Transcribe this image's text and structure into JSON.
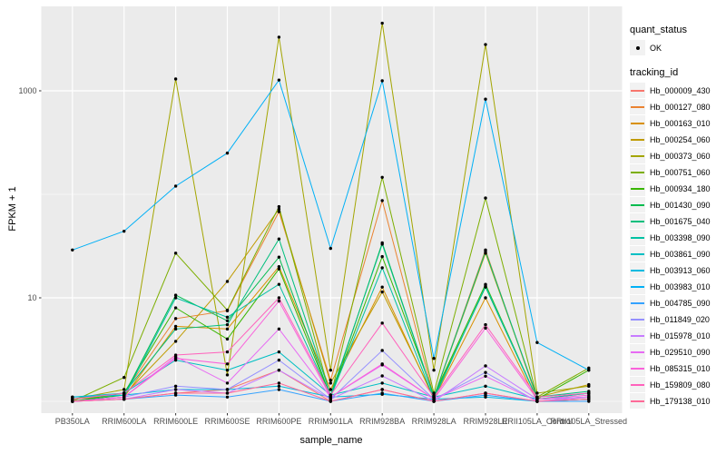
{
  "figure": {
    "bg": "#FFFFFF",
    "panel_bg": "#EBEBEB",
    "grid_color": "#FFFFFF",
    "tick_label_color": "#4D4D4D",
    "point_color": "#000000"
  },
  "chart_data": {
    "type": "line",
    "title": "",
    "xlabel": "sample_name",
    "ylabel": "FPKM + 1",
    "y_scale": "log10",
    "y_tick_labels": [
      "10",
      "1000"
    ],
    "y_tick_values": [
      10,
      1000
    ],
    "y_minor_values": [
      1,
      100
    ],
    "ylim": [
      0.77,
      6200
    ],
    "grid": true,
    "legend_position": "right",
    "categories": [
      "PB350LA",
      "RRIM600LA",
      "RRIM600LE",
      "RRIM600SE",
      "RRIM600PE",
      "RRIM901LA",
      "RRIM928BA",
      "RRIM928LA",
      "RRIM928LE",
      "RRII105LA_Control",
      "RRII105LA_Stressed"
    ],
    "legend": {
      "quant_status_title": "quant_status",
      "quant_status_items": [
        {
          "label": "OK",
          "symbol": "black-point"
        }
      ],
      "tracking_id_title": "tracking_id"
    },
    "series": [
      {
        "name": "Hb_000009_430",
        "color": "#F8766D",
        "values": [
          1.0,
          1.05,
          1.2,
          1.3,
          2.0,
          1.0,
          1.3,
          1.0,
          1.2,
          1.0,
          1.05
        ]
      },
      {
        "name": "Hb_000127_080",
        "color": "#EA8331",
        "values": [
          1.05,
          1.2,
          6.3,
          7.5,
          68,
          1.6,
          87,
          1.1,
          29,
          1.05,
          1.1
        ]
      },
      {
        "name": "Hb_000163_010",
        "color": "#D89000",
        "values": [
          1.0,
          1.1,
          5.3,
          5.0,
          20,
          1.3,
          12.7,
          1.05,
          10,
          1.0,
          1.05
        ]
      },
      {
        "name": "Hb_000254_060",
        "color": "#C09B00",
        "values": [
          1.05,
          1.15,
          3.8,
          14.4,
          72,
          1.5,
          11.4,
          1.1,
          27,
          1.1,
          1.45
        ]
      },
      {
        "name": "Hb_000373_060",
        "color": "#A3A500",
        "values": [
          1.05,
          1.3,
          1300,
          1.8,
          3300,
          2.0,
          4500,
          2.0,
          2800,
          1.2,
          1.4
        ]
      },
      {
        "name": "Hb_000751_060",
        "color": "#7CAE00",
        "values": [
          1.0,
          1.7,
          27,
          7.6,
          76,
          1.1,
          146,
          1.2,
          92,
          1.1,
          2.1
        ]
      },
      {
        "name": "Hb_000934_180",
        "color": "#39B600",
        "values": [
          1.0,
          1.2,
          8.0,
          4.0,
          19,
          1.1,
          25,
          1.15,
          13.5,
          1.05,
          2.0
        ]
      },
      {
        "name": "Hb_001430_090",
        "color": "#00BB4E",
        "values": [
          1.0,
          1.15,
          10.6,
          6.0,
          24.7,
          1.1,
          34,
          1.1,
          12.7,
          1.05,
          1.2
        ]
      },
      {
        "name": "Hb_001675_040",
        "color": "#00BF7D",
        "values": [
          1.05,
          1.2,
          5.0,
          5.5,
          37,
          1.15,
          33,
          1.1,
          28,
          1.1,
          1.25
        ]
      },
      {
        "name": "Hb_003398_090",
        "color": "#00C1A3",
        "values": [
          1.0,
          1.1,
          10.0,
          6.5,
          13.5,
          1.1,
          19.5,
          1.05,
          13,
          1.05,
          1.2
        ]
      },
      {
        "name": "Hb_003861_090",
        "color": "#00BFC4",
        "values": [
          1.1,
          1.2,
          2.5,
          2.0,
          3.0,
          1.15,
          1.5,
          1.1,
          1.4,
          1.05,
          1.1
        ]
      },
      {
        "name": "Hb_003913_060",
        "color": "#00BAE0",
        "values": [
          1.1,
          1.15,
          1.3,
          1.3,
          1.4,
          1.1,
          1.17,
          1.05,
          1.1,
          1.0,
          1.05
        ]
      },
      {
        "name": "Hb_003983_010",
        "color": "#00B0F6",
        "values": [
          29,
          44,
          120,
          250,
          1270,
          30,
          1250,
          2.6,
          830,
          3.7,
          2.0
        ]
      },
      {
        "name": "Hb_004785_090",
        "color": "#35A2FF",
        "values": [
          1.0,
          1.05,
          1.15,
          1.1,
          1.3,
          1.0,
          1.2,
          1.0,
          1.15,
          1.0,
          1.0
        ]
      },
      {
        "name": "Hb_011849_020",
        "color": "#9590FF",
        "values": [
          1.0,
          1.1,
          1.4,
          1.3,
          2.5,
          1.05,
          3.1,
          1.05,
          1.9,
          1.0,
          1.1
        ]
      },
      {
        "name": "Hb_015978_010",
        "color": "#C77CFF",
        "values": [
          1.0,
          1.05,
          1.3,
          1.2,
          2.0,
          1.05,
          1.76,
          1.0,
          2.2,
          1.05,
          1.1
        ]
      },
      {
        "name": "Hb_029510_090",
        "color": "#E76BF3",
        "values": [
          1.0,
          1.1,
          2.7,
          1.5,
          5.0,
          1.1,
          2.25,
          1.05,
          1.75,
          1.0,
          1.1
        ]
      },
      {
        "name": "Hb_085315_010",
        "color": "#FA62DB",
        "values": [
          1.0,
          1.1,
          2.6,
          2.3,
          9.3,
          1.1,
          2.3,
          1.05,
          5.1,
          1.05,
          1.15
        ]
      },
      {
        "name": "Hb_159809_080",
        "color": "#FF62BC",
        "values": [
          1.05,
          1.2,
          2.8,
          3.0,
          10.0,
          1.15,
          5.7,
          1.1,
          5.5,
          1.1,
          1.2
        ]
      },
      {
        "name": "Hb_179138_010",
        "color": "#FF6A98",
        "values": [
          1.0,
          1.05,
          1.2,
          1.2,
          1.5,
          1.0,
          1.3,
          1.0,
          1.2,
          1.0,
          1.05
        ]
      }
    ]
  }
}
